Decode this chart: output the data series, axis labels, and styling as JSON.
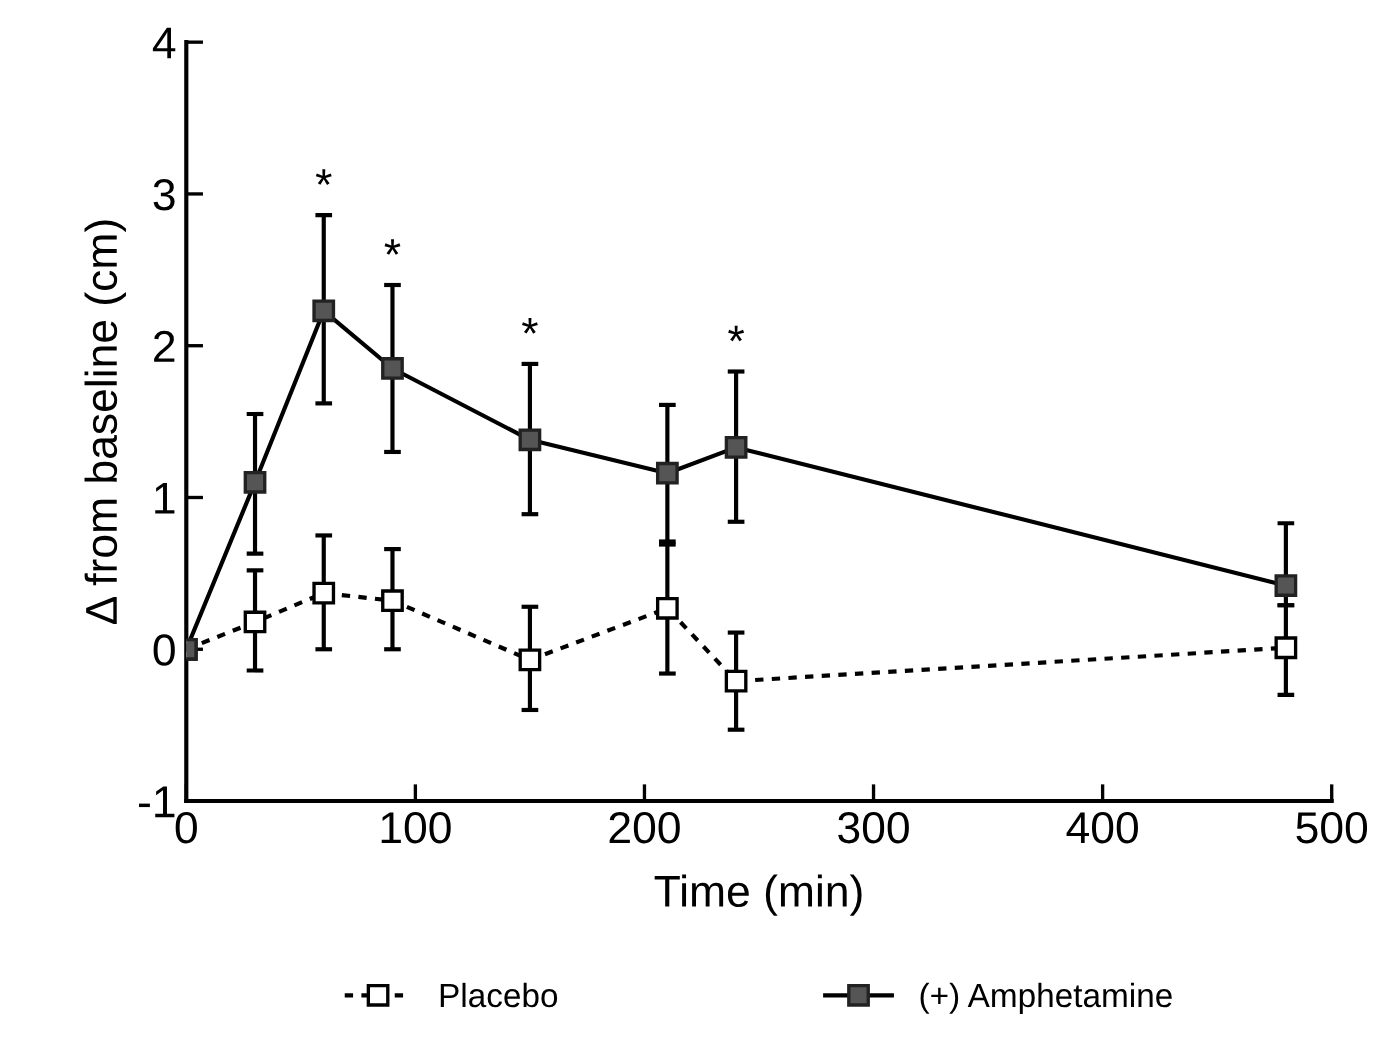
{
  "chart_data": {
    "type": "line",
    "xlabel": "Time (min)",
    "ylabel": "Δ from baseline (cm)",
    "xlim": [
      0,
      500
    ],
    "xticks": [
      0,
      100,
      200,
      300,
      400,
      500
    ],
    "ylim": [
      -1,
      4
    ],
    "yticks": [
      -1,
      0,
      1,
      2,
      3,
      4
    ],
    "grid": false,
    "legend": "bottom",
    "marker": "square",
    "series": [
      {
        "name": "Placebo",
        "color": "#000000",
        "line_style": "dotted",
        "x": [
          0,
          30,
          60,
          90,
          150,
          210,
          240,
          480
        ],
        "values": [
          0,
          0.18,
          0.37,
          0.32,
          -0.07,
          0.27,
          -0.21,
          0.01
        ],
        "errors": [
          null,
          [
            -0.14,
            0.52
          ],
          [
            0,
            0.75
          ],
          [
            0,
            0.66
          ],
          [
            -0.4,
            0.28
          ],
          [
            -0.16,
            0.71
          ],
          [
            -0.53,
            0.11
          ],
          [
            -0.3,
            0.29
          ]
        ]
      },
      {
        "name": "(+) Amphetamine",
        "color": "#555555",
        "line_style": "solid",
        "x": [
          0,
          30,
          60,
          90,
          150,
          210,
          240,
          480
        ],
        "values": [
          0,
          1.1,
          2.23,
          1.85,
          1.38,
          1.16,
          1.33,
          0.42
        ],
        "errors": [
          null,
          [
            0.63,
            1.55
          ],
          [
            1.62,
            2.86
          ],
          [
            1.3,
            2.4
          ],
          [
            0.89,
            1.88
          ],
          [
            0.69,
            1.61
          ],
          [
            0.84,
            1.83
          ],
          [
            0.29,
            0.83
          ]
        ]
      }
    ],
    "annotations": [
      {
        "text": "*",
        "x": 60,
        "y": 2.9
      },
      {
        "text": "*",
        "x": 90,
        "y": 2.44
      },
      {
        "text": "*",
        "x": 150,
        "y": 1.92
      },
      {
        "text": "*",
        "x": 240,
        "y": 1.87
      }
    ]
  }
}
